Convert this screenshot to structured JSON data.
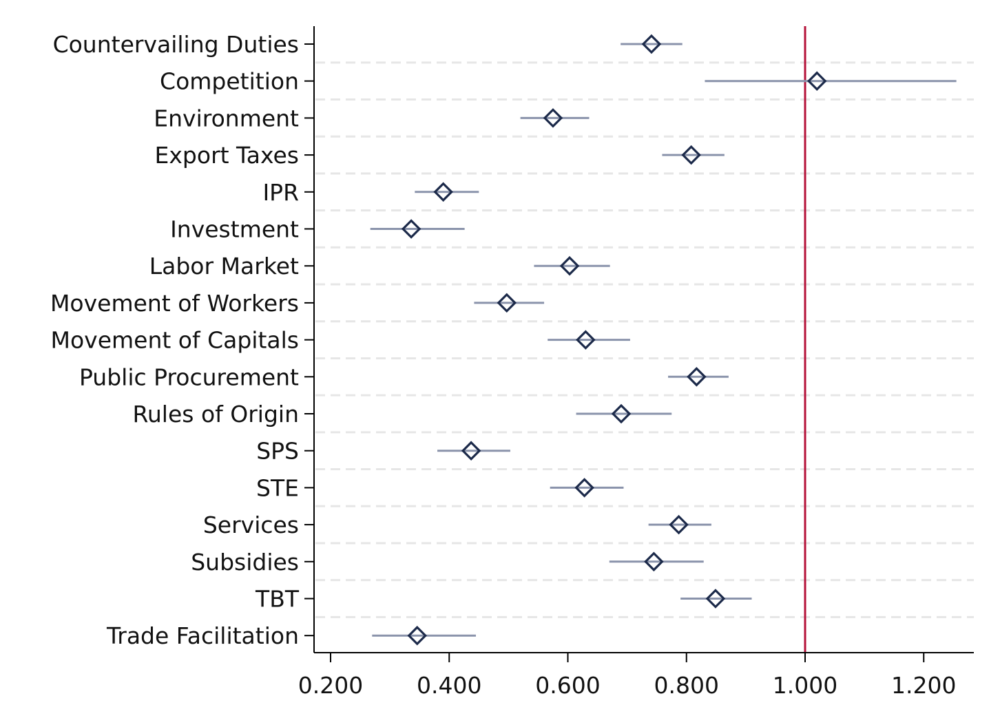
{
  "chart_data": {
    "type": "scatter",
    "orientation": "horizontal",
    "title": "",
    "xlabel": "",
    "ylabel": "",
    "xlim": [
      0.18,
      1.28
    ],
    "x_ticks": [
      0.2,
      0.4,
      0.6,
      0.8,
      1.0,
      1.2
    ],
    "x_tick_labels": [
      "0.200",
      "0.400",
      "0.600",
      "0.800",
      "1.000",
      "1.200"
    ],
    "reference_line": {
      "x": 1.0,
      "color": "#b5123a"
    },
    "grid": "horizontal dashed",
    "legend": "none",
    "colors": {
      "marker": "#1c2a4a",
      "interval": "#8a93ab",
      "grid": "#e6e6e6",
      "axis": "#000000"
    },
    "series": [
      {
        "marker": "diamond",
        "points": [
          {
            "label": "Countervailing Duties",
            "estimate": 0.741,
            "ci_low": 0.689,
            "ci_high": 0.793
          },
          {
            "label": "Competition",
            "estimate": 1.02,
            "ci_low": 0.831,
            "ci_high": 1.255
          },
          {
            "label": "Environment",
            "estimate": 0.575,
            "ci_low": 0.52,
            "ci_high": 0.636
          },
          {
            "label": "Export Taxes",
            "estimate": 0.808,
            "ci_low": 0.759,
            "ci_high": 0.864
          },
          {
            "label": "IPR",
            "estimate": 0.39,
            "ci_low": 0.342,
            "ci_high": 0.45
          },
          {
            "label": "Investment",
            "estimate": 0.336,
            "ci_low": 0.267,
            "ci_high": 0.426
          },
          {
            "label": "Labor Market",
            "estimate": 0.603,
            "ci_low": 0.543,
            "ci_high": 0.671
          },
          {
            "label": "Movement of Workers",
            "estimate": 0.497,
            "ci_low": 0.442,
            "ci_high": 0.56
          },
          {
            "label": "Movement of Capitals",
            "estimate": 0.63,
            "ci_low": 0.566,
            "ci_high": 0.705
          },
          {
            "label": "Public Procurement",
            "estimate": 0.817,
            "ci_low": 0.769,
            "ci_high": 0.871
          },
          {
            "label": "Rules of Origin",
            "estimate": 0.69,
            "ci_low": 0.614,
            "ci_high": 0.775
          },
          {
            "label": "SPS",
            "estimate": 0.437,
            "ci_low": 0.38,
            "ci_high": 0.503
          },
          {
            "label": "STE",
            "estimate": 0.628,
            "ci_low": 0.57,
            "ci_high": 0.694
          },
          {
            "label": "Services",
            "estimate": 0.787,
            "ci_low": 0.736,
            "ci_high": 0.842
          },
          {
            "label": "Subsidies",
            "estimate": 0.745,
            "ci_low": 0.67,
            "ci_high": 0.829
          },
          {
            "label": "TBT",
            "estimate": 0.849,
            "ci_low": 0.79,
            "ci_high": 0.91
          },
          {
            "label": "Trade Facilitation",
            "estimate": 0.346,
            "ci_low": 0.27,
            "ci_high": 0.445
          }
        ]
      }
    ]
  }
}
